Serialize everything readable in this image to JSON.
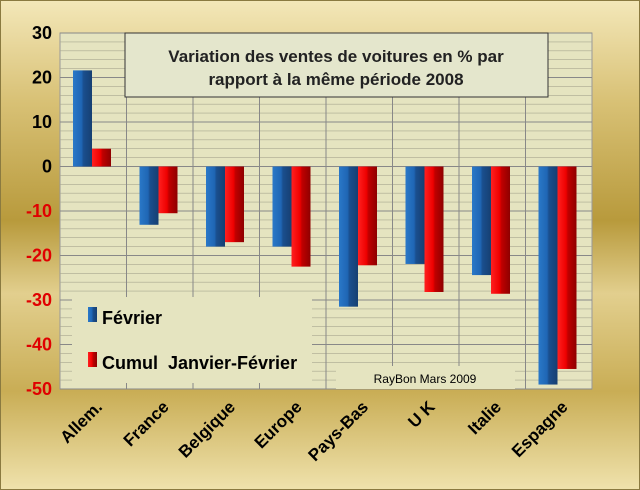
{
  "chart_data": {
    "type": "bar",
    "title": "Variation des ventes de voitures en % par rapport à la même période 2008",
    "title_lines": [
      "Variation des ventes de voitures en % par",
      "rapport à la même période 2008"
    ],
    "categories": [
      "Allem.",
      "France",
      "Belgique",
      "Europe",
      "Pays-Bas",
      "U K",
      "Italie",
      "Espagne"
    ],
    "series": [
      {
        "name": "Février",
        "color": "#1f5fa8",
        "values": [
          21.6,
          -13.1,
          -18.0,
          -18.0,
          -31.5,
          -21.9,
          -24.4,
          -49.0
        ]
      },
      {
        "name": "Cumul  Janvier-Février",
        "color": "#e00000",
        "values": [
          4.0,
          -10.5,
          -17.0,
          -22.5,
          -22.2,
          -28.2,
          -28.6,
          -45.5
        ]
      }
    ],
    "ylim": [
      -50,
      30
    ],
    "yticks": [
      30,
      20,
      10,
      0,
      -10,
      -20,
      -30,
      -40,
      -50
    ],
    "xlabel": "",
    "ylabel": "",
    "grid": true,
    "legend_position": "bottom-left",
    "annotation": "RayBon Mars 2009"
  }
}
